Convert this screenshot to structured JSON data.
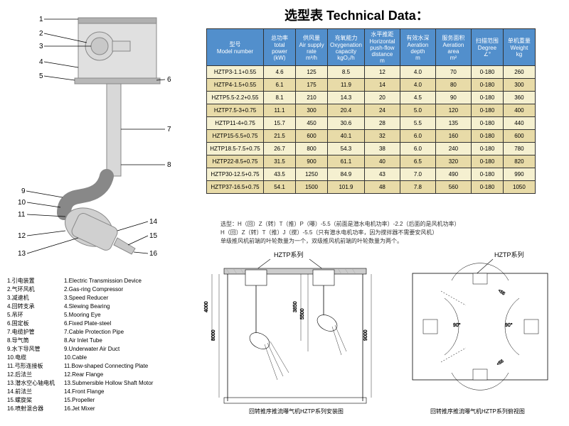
{
  "title": "选型表  Technical Data：",
  "table": {
    "headers": [
      {
        "cn": "型号",
        "en": "Model number",
        "unit": ""
      },
      {
        "cn": "总功率",
        "en": "total power",
        "unit": "(kW)"
      },
      {
        "cn": "供风量",
        "en": "Air supply rate",
        "unit": "m³/h"
      },
      {
        "cn": "充氧能力",
        "en": "Oxygenation capacity",
        "unit": "kgO₂/h"
      },
      {
        "cn": "水平推距",
        "en": "Horizontal push-flow distance",
        "unit": "m"
      },
      {
        "cn": "有效水深",
        "en": "Aeration depth",
        "unit": "m"
      },
      {
        "cn": "服务面积",
        "en": "Aeration area",
        "unit": "m²"
      },
      {
        "cn": "扫描范围",
        "en": "Degree",
        "unit": "∠°"
      },
      {
        "cn": "单机重量",
        "en": "Weight",
        "unit": "kg"
      }
    ],
    "rows": [
      [
        "HZTP3-1.1+0.55",
        "4.6",
        "125",
        "8.5",
        "12",
        "4.0",
        "70",
        "0-180",
        "260"
      ],
      [
        "HZTP4-1.5+0.55",
        "6.1",
        "175",
        "11.9",
        "14",
        "4.0",
        "80",
        "0-180",
        "300"
      ],
      [
        "HZTP5.5-2.2+0.55",
        "8.1",
        "210",
        "14.3",
        "20",
        "4.5",
        "90",
        "0-180",
        "360"
      ],
      [
        "HZTP7.5-3+0.75",
        "11.1",
        "300",
        "20.4",
        "24",
        "5.0",
        "120",
        "0-180",
        "400"
      ],
      [
        "HZTP11-4+0.75",
        "15.7",
        "450",
        "30.6",
        "28",
        "5.5",
        "135",
        "0-180",
        "440"
      ],
      [
        "HZTP15-5.5+0.75",
        "21.5",
        "600",
        "40.1",
        "32",
        "6.0",
        "160",
        "0-180",
        "600"
      ],
      [
        "HZTP18.5-7.5+0.75",
        "26.7",
        "800",
        "54.3",
        "38",
        "6.0",
        "240",
        "0-180",
        "780"
      ],
      [
        "HZTP22-8.5+0.75",
        "31.5",
        "900",
        "61.1",
        "40",
        "6.5",
        "320",
        "0-180",
        "820"
      ],
      [
        "HZTP30-12.5+0.75",
        "43.5",
        "1250",
        "84.9",
        "43",
        "7.0",
        "490",
        "0-180",
        "990"
      ],
      [
        "HZTP37-16.5+0.75",
        "54.1",
        "1500",
        "101.9",
        "48",
        "7.8",
        "560",
        "0-180",
        "1050"
      ]
    ]
  },
  "note_lines": [
    "选型：H（回）Z（转）T（推）P（曝）-5.5（前面是潜水电机功率）-2.2（后面的是风机功率）",
    "H（回）Z（转）T（推）J（搅）-5.5（只有潜水电机功率，因为搅拌器不需要安风机）",
    "单级推风机前端的叶轮数量为一个，双级推风机前端的叶轮数量为两个。"
  ],
  "legend": [
    {
      "n": "1",
      "cn": "引电装置",
      "en": "1.Electric Transmission Device"
    },
    {
      "n": "2",
      "cn": "气环风机",
      "en": "2.Gas-ring Compressor"
    },
    {
      "n": "3",
      "cn": "减速机",
      "en": "3.Speed Reducer"
    },
    {
      "n": "4",
      "cn": "回转支承",
      "en": "4.Slewing Bearing"
    },
    {
      "n": "5",
      "cn": "吊环",
      "en": "5.Mooring Eye"
    },
    {
      "n": "6",
      "cn": "固定板",
      "en": "6.Fixed Plate-steel"
    },
    {
      "n": "7",
      "cn": "电缆护管",
      "en": "7.Cable Protection Pipe"
    },
    {
      "n": "8",
      "cn": "导气筒",
      "en": "8.Air Inlet Tube"
    },
    {
      "n": "9",
      "cn": "水下导风管",
      "en": "9.Underwater Air Duct"
    },
    {
      "n": "10",
      "cn": "电缆",
      "en": "10.Cable"
    },
    {
      "n": "11",
      "cn": "弓形连接板",
      "en": "11.Bow-shaped Connecting Plate"
    },
    {
      "n": "12",
      "cn": "后法兰",
      "en": "12.Rear Flange"
    },
    {
      "n": "13",
      "cn": "潜水空心轴电机",
      "en": "13.Submersible Hollow Shaft Motor"
    },
    {
      "n": "14",
      "cn": "前法兰",
      "en": "14.Front Flange"
    },
    {
      "n": "15",
      "cn": "螺旋桨",
      "en": "15.Propeller"
    },
    {
      "n": "16",
      "cn": "喷射混合器",
      "en": "16.Jet Mixer"
    }
  ],
  "series": "HZTP系列",
  "bottom_caption_left": "回转推序推流曝气机HZTP系列安装图",
  "bottom_caption_right": "回转推序推流曝气机HZTP系列俯视图",
  "dims": {
    "d1": "3850",
    "d2": "4000",
    "d3": "5500",
    "d4": "8000",
    "d5": "9000"
  },
  "colors": {
    "header_bg": "#528fcc",
    "row_odd": "#f5f0d0",
    "row_even": "#e8dba8",
    "first_col": "#c8e0b8",
    "machine_fill": "#d0d0d0",
    "machine_stroke": "#666"
  }
}
